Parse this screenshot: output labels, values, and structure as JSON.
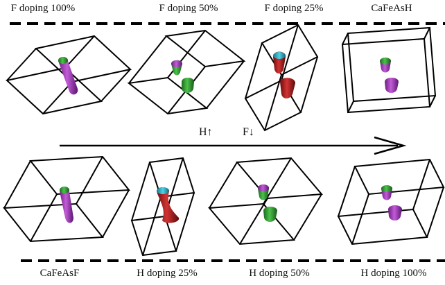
{
  "top_labels": {
    "f100": "F doping 100%",
    "f50": "F doping 50%",
    "f25": "F doping 25%",
    "cafeash": "CaFeAsH"
  },
  "bottom_labels": {
    "cafeasf": "CaFeAsF",
    "h25": "H doping 25%",
    "h50": "H doping 50%",
    "h100": "H doping 100%"
  },
  "arrow_labels": {
    "h": "H↑",
    "f": "F↓"
  },
  "colors": {
    "purple": "#a23bb8",
    "green": "#2e9a2e",
    "red": "#b01f1f",
    "cyan": "#2ab3c9",
    "line": "#000000"
  }
}
